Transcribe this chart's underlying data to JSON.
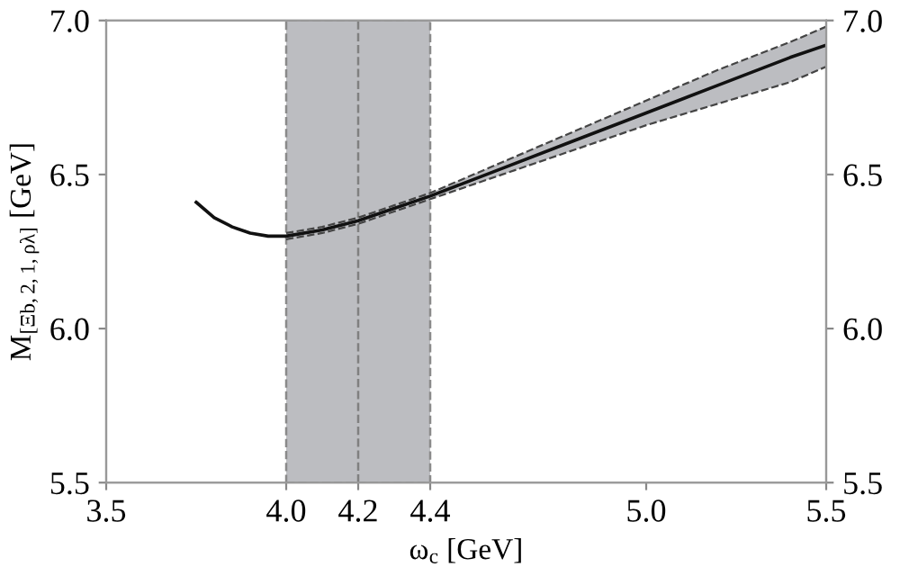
{
  "chart_data": {
    "type": "line",
    "xlabel": "ω$_{c}$ [GeV]",
    "ylabel": "M$_{[Ξb,2,1,ρλ]}$ [GeV]",
    "x": [
      3.75,
      3.8,
      3.85,
      3.9,
      3.95,
      4.0,
      4.1,
      4.2,
      4.3,
      4.4,
      4.6,
      4.8,
      5.0,
      5.2,
      5.4,
      5.5
    ],
    "series": [
      {
        "color": "#111111",
        "values": [
          6.41,
          6.36,
          6.33,
          6.31,
          6.3,
          6.3,
          6.32,
          6.35,
          6.39,
          6.43,
          6.52,
          6.61,
          6.7,
          6.79,
          6.88,
          6.92
        ],
        "lower": [
          null,
          null,
          null,
          null,
          null,
          6.29,
          6.31,
          6.34,
          6.38,
          6.42,
          6.5,
          6.58,
          6.66,
          6.73,
          6.8,
          6.85
        ],
        "upper": [
          null,
          null,
          null,
          null,
          null,
          6.31,
          6.33,
          6.36,
          6.4,
          6.44,
          6.54,
          6.64,
          6.74,
          6.84,
          6.93,
          6.98
        ]
      },
      {
        "color": "#444444",
        "line_style": "dashed",
        "x": [
          4.0,
          4.1,
          4.2,
          4.3,
          4.4,
          4.6,
          4.8,
          5.0,
          5.2,
          5.4,
          5.5
        ],
        "values": [
          6.29,
          6.31,
          6.34,
          6.38,
          6.42,
          6.5,
          6.58,
          6.66,
          6.73,
          6.8,
          6.85
        ]
      },
      {
        "color": "#444444",
        "line_style": "dashed",
        "x": [
          4.0,
          4.1,
          4.2,
          4.3,
          4.4,
          4.6,
          4.8,
          5.0,
          5.2,
          5.4,
          5.5
        ],
        "values": [
          6.31,
          6.33,
          6.36,
          6.4,
          6.44,
          6.54,
          6.64,
          6.74,
          6.84,
          6.93,
          6.98
        ]
      }
    ],
    "xlim": [
      3.5,
      5.5
    ],
    "xticks": [
      {
        "value": 3.5,
        "label": "3.5"
      },
      {
        "value": 4.0,
        "label": "4.0"
      },
      {
        "value": 4.2,
        "label": "4.2"
      },
      {
        "value": 4.4,
        "label": "4.4"
      },
      {
        "value": 5.0,
        "label": "5.0"
      },
      {
        "value": 5.5,
        "label": "5.5"
      }
    ],
    "ylim": [
      5.5,
      7.0
    ],
    "yticks": [
      {
        "value": 5.5,
        "label": "5.5"
      },
      {
        "value": 6.0,
        "label": "6.0"
      },
      {
        "value": 6.5,
        "label": "6.5"
      },
      {
        "value": 7.0,
        "label": "7.0"
      }
    ],
    "y2lim": [
      5.5,
      7.0
    ],
    "y2ticks": [
      {
        "value": 5.5,
        "label": "5.5"
      },
      {
        "value": 6.0,
        "label": "6.0"
      },
      {
        "value": 6.5,
        "label": "6.5"
      },
      {
        "value": 7.0,
        "label": "7.0"
      }
    ],
    "bands": [
      {
        "axis": "x",
        "from": 4.0,
        "to": 4.4,
        "color": "#bcbdc1"
      }
    ],
    "ref_lines": [
      {
        "axis": "x",
        "value": 4.2,
        "color": "#808080",
        "line_style": "dashed"
      }
    ],
    "line_style": "solid",
    "grid": false,
    "legend": false
  }
}
